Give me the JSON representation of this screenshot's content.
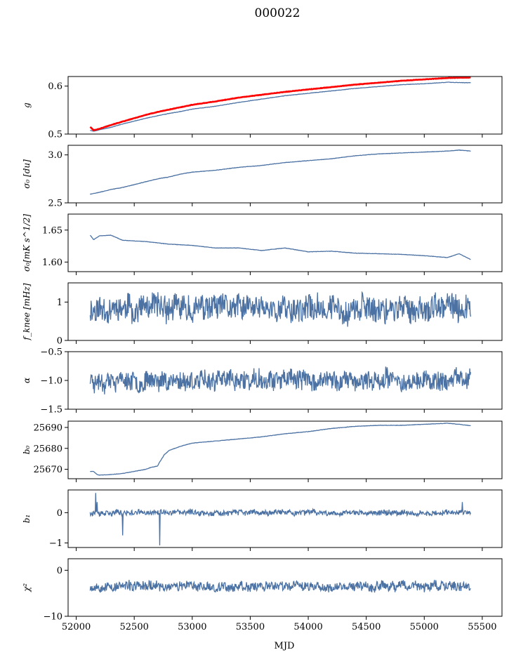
{
  "figure": {
    "title": "000022",
    "xlabel": "MJD",
    "line_color": "#4c72a4",
    "overlay_color": "#ff0000"
  },
  "chart_data": [
    {
      "type": "line",
      "ylabel": "g",
      "xlim": [
        51930,
        55670
      ],
      "ylim": [
        0.5,
        0.62
      ],
      "yticks": [
        0.5,
        0.6
      ],
      "ytick_labels": [
        "0.5",
        "0.6"
      ],
      "xticks": [
        52000,
        52500,
        53000,
        53500,
        54000,
        54500,
        55000,
        55500
      ],
      "series": [
        {
          "color": "#4c72a4",
          "x": [
            52120,
            52150,
            52200,
            52300,
            52400,
            52500,
            52600,
            52700,
            52800,
            52900,
            53000,
            53200,
            53400,
            53600,
            53800,
            54000,
            54200,
            54400,
            54600,
            54800,
            55000,
            55200,
            55400
          ],
          "y": [
            0.508,
            0.506,
            0.509,
            0.514,
            0.521,
            0.527,
            0.533,
            0.538,
            0.543,
            0.547,
            0.552,
            0.558,
            0.566,
            0.573,
            0.58,
            0.585,
            0.59,
            0.595,
            0.599,
            0.603,
            0.605,
            0.608,
            0.607
          ]
        },
        {
          "color": "#ff0000",
          "x": [
            52120,
            52150,
            52200,
            52300,
            52400,
            52500,
            52600,
            52700,
            52800,
            52900,
            53000,
            53200,
            53400,
            53600,
            53800,
            54000,
            54200,
            54400,
            54600,
            54800,
            55000,
            55200,
            55400
          ],
          "y": [
            0.515,
            0.508,
            0.511,
            0.519,
            0.526,
            0.533,
            0.54,
            0.546,
            0.551,
            0.556,
            0.561,
            0.568,
            0.576,
            0.582,
            0.588,
            0.593,
            0.598,
            0.603,
            0.607,
            0.611,
            0.614,
            0.617,
            0.618
          ]
        }
      ]
    },
    {
      "type": "line",
      "ylabel": "σ₀ [du]",
      "xlim": [
        51930,
        55670
      ],
      "ylim": [
        2.5,
        3.1
      ],
      "yticks": [
        2.5,
        3.0
      ],
      "ytick_labels": [
        "2.5",
        "3.0"
      ],
      "series": [
        {
          "color": "#4c72a4",
          "x": [
            52120,
            52200,
            52300,
            52400,
            52500,
            52600,
            52700,
            52800,
            52900,
            53000,
            53200,
            53400,
            53600,
            53800,
            54000,
            54200,
            54400,
            54600,
            54800,
            55000,
            55200,
            55300,
            55400
          ],
          "y": [
            2.59,
            2.61,
            2.64,
            2.66,
            2.69,
            2.72,
            2.75,
            2.77,
            2.8,
            2.82,
            2.84,
            2.87,
            2.89,
            2.92,
            2.94,
            2.96,
            2.99,
            3.01,
            3.02,
            3.03,
            3.04,
            3.05,
            3.04
          ]
        }
      ]
    },
    {
      "type": "line",
      "ylabel": "σ₀[mK s^1/2]",
      "xlim": [
        51930,
        55670
      ],
      "ylim": [
        1.585,
        1.675
      ],
      "yticks": [
        1.6,
        1.65
      ],
      "ytick_labels": [
        "1.60",
        "1.65"
      ],
      "series": [
        {
          "color": "#4c72a4",
          "x": [
            52120,
            52150,
            52200,
            52300,
            52400,
            52500,
            52600,
            52800,
            53000,
            53200,
            53400,
            53600,
            53800,
            54000,
            54200,
            54400,
            54600,
            54800,
            55000,
            55200,
            55300,
            55400
          ],
          "y": [
            1.642,
            1.635,
            1.641,
            1.642,
            1.634,
            1.633,
            1.632,
            1.628,
            1.626,
            1.622,
            1.622,
            1.618,
            1.622,
            1.616,
            1.617,
            1.614,
            1.613,
            1.612,
            1.61,
            1.607,
            1.613,
            1.604
          ]
        }
      ]
    },
    {
      "type": "line",
      "ylabel": "f_knee [mHz]",
      "xlim": [
        51930,
        55670
      ],
      "ylim": [
        0,
        1.5
      ],
      "yticks": [
        0,
        1
      ],
      "ytick_labels": [
        "0",
        "1"
      ],
      "series": [
        {
          "color": "#4c72a4",
          "x_start": 52120,
          "x_end": 55400,
          "mean": 0.83,
          "noise": 0.45,
          "seed": 11
        }
      ]
    },
    {
      "type": "line",
      "ylabel": "α",
      "xlim": [
        51930,
        55670
      ],
      "ylim": [
        -1.5,
        -0.5
      ],
      "yticks": [
        -1.5,
        -1.0,
        -0.5
      ],
      "ytick_labels": [
        "−1.5",
        "−1.0",
        "−0.5"
      ],
      "series": [
        {
          "color": "#4c72a4",
          "x_start": 52120,
          "x_end": 55400,
          "mean": -1.0,
          "noise": 0.22,
          "seed": 23
        }
      ]
    },
    {
      "type": "line",
      "ylabel": "b₀",
      "xlim": [
        51930,
        55670
      ],
      "ylim": [
        25665.5,
        25693
      ],
      "yticks": [
        25670,
        25680,
        25690
      ],
      "ytick_labels": [
        "25670",
        "25680",
        "25690"
      ],
      "series": [
        {
          "color": "#4c72a4",
          "x": [
            52120,
            52150,
            52180,
            52200,
            52300,
            52400,
            52500,
            52600,
            52650,
            52700,
            52720,
            52760,
            52800,
            52900,
            53000,
            53200,
            53400,
            53600,
            53800,
            54000,
            54200,
            54400,
            54600,
            54800,
            55000,
            55200,
            55300,
            55400
          ],
          "y": [
            25669,
            25669,
            25667.5,
            25667.2,
            25667.5,
            25668,
            25669,
            25670,
            25671,
            25671.5,
            25673.5,
            25677,
            25679,
            25681,
            25682.5,
            25683.5,
            25684.5,
            25685.5,
            25687,
            25688,
            25689.5,
            25690.5,
            25691,
            25691,
            25691.5,
            25692,
            25691.5,
            25690.8
          ]
        }
      ]
    },
    {
      "type": "line",
      "ylabel": "b₁",
      "xlim": [
        51930,
        55670
      ],
      "ylim": [
        -1.15,
        0.75
      ],
      "yticks": [
        -1,
        0
      ],
      "ytick_labels": [
        "−1",
        "0"
      ],
      "series": [
        {
          "color": "#4c72a4",
          "x_start": 52120,
          "x_end": 55400,
          "mean": 0.0,
          "noise": 0.12,
          "seed": 37,
          "spikes": [
            [
              52170,
              0.65
            ],
            [
              52180,
              0.35
            ],
            [
              52400,
              -0.75
            ],
            [
              52720,
              -1.08
            ],
            [
              55330,
              0.35
            ]
          ]
        }
      ]
    },
    {
      "type": "line",
      "ylabel": "χ²",
      "xlim": [
        51930,
        55670
      ],
      "ylim": [
        -10,
        2.5
      ],
      "yticks": [
        -10,
        0
      ],
      "ytick_labels": [
        "−10",
        "0"
      ],
      "series": [
        {
          "color": "#4c72a4",
          "x_start": 52120,
          "x_end": 55400,
          "mean": -3.5,
          "noise": 1.4,
          "seed": 53
        }
      ]
    }
  ]
}
